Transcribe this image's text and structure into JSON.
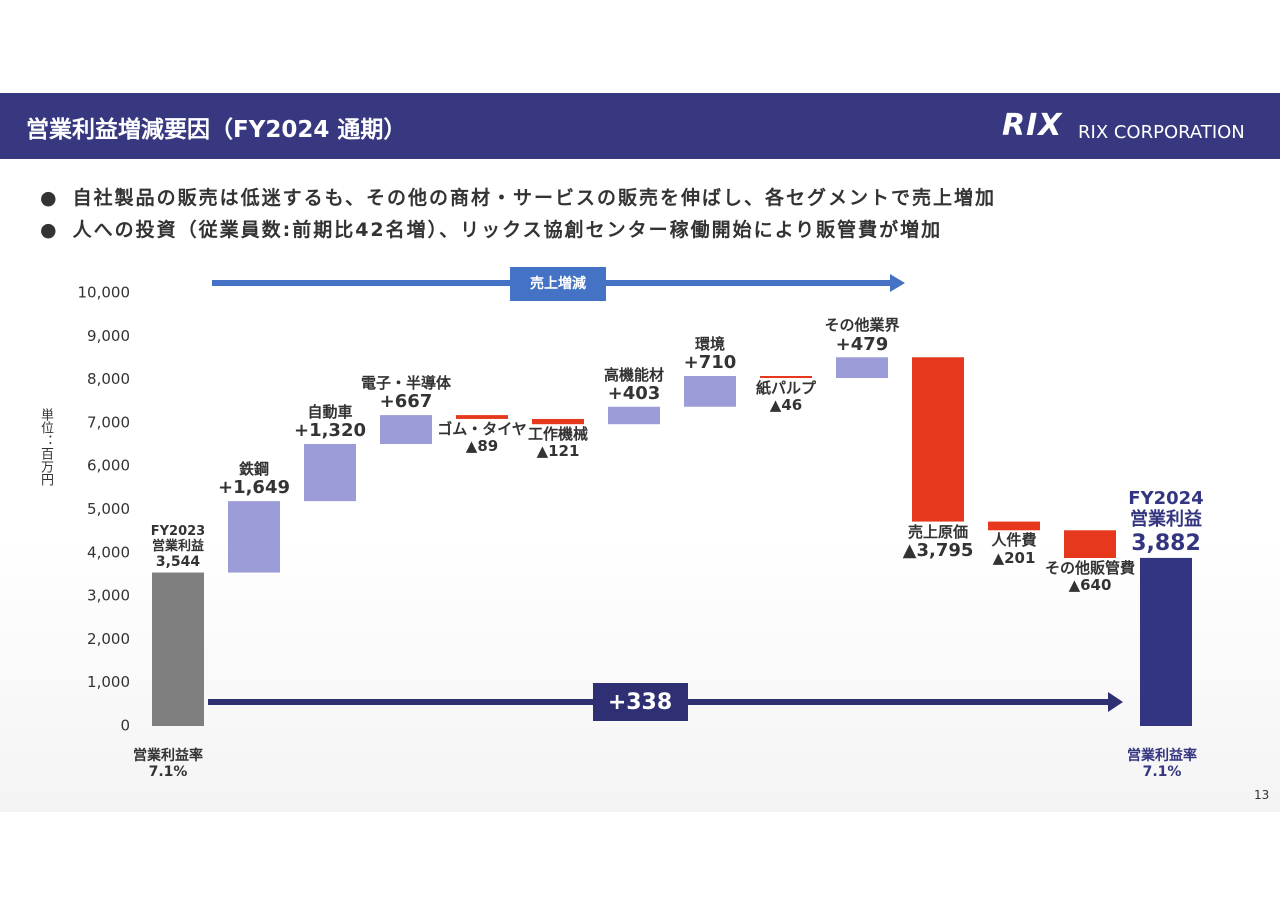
{
  "header": {
    "title": "営業利益増減要因（FY2024 通期）",
    "logo_mark": "RIX",
    "logo_text": "RIX CORPORATION"
  },
  "bullets": [
    "自社製品の販売は低迷するも、その他の商材・サービスの販売を伸ばし、各セグメントで売上増加",
    "人への投資（従業員数:前期比42名増）、リックス協創センター稼働開始により販管費が増加"
  ],
  "page_number": "13",
  "chart_data": {
    "type": "waterfall",
    "y_label": "単位：百万円",
    "categories": [
      "FY2023\n営業利益",
      "鉄鋼",
      "自動車",
      "電子・半導体",
      "ゴム・タイヤ",
      "工作機械",
      "高機能材",
      "環境",
      "紙パルプ",
      "その他業界",
      "売上原価",
      "人件費",
      "その他販管費",
      "FY2024\n営業利益"
    ],
    "values": [
      3544,
      1649,
      1320,
      667,
      -89,
      -121,
      403,
      710,
      -46,
      479,
      -3795,
      -201,
      -640,
      3882
    ],
    "value_labels": [
      "3,544",
      "+1,649",
      "+1,320",
      "+667",
      "▲89",
      "▲121",
      "+403",
      "+710",
      "▲46",
      "+479",
      "▲3,795",
      "▲201",
      "▲640",
      "3,882"
    ],
    "colors": [
      "#7f7f7f",
      "#9c9cd8",
      "#9c9cd8",
      "#9c9cd8",
      "#e5381d",
      "#e5381d",
      "#9c9cd8",
      "#9c9cd8",
      "#e5381d",
      "#9c9cd8",
      "#e5381d",
      "#e5381d",
      "#e5381d",
      "#343580"
    ],
    "ylim": [
      0,
      10000
    ],
    "yticks": [
      0,
      {
        "value": 1000,
        "label": "1,000"
      },
      {
        "value": 2000,
        "label": "2,000"
      },
      {
        "value": 3000,
        "label": "3,000"
      },
      {
        "value": 4000,
        "label": "4,000"
      },
      {
        "value": 5000,
        "label": "5,000"
      },
      {
        "value": 6000,
        "label": "6,000"
      },
      {
        "value": 7000,
        "label": "7,000"
      },
      {
        "value": 8000,
        "label": "8,000"
      },
      {
        "value": 9000,
        "label": "9,000"
      },
      {
        "value": 10000,
        "label": "10,000"
      }
    ],
    "sales_arrow_label": "売上増減",
    "change": {
      "value": 338,
      "label": "+338"
    },
    "margin_title": "営業利益率",
    "margin_start": {
      "value": 7.1,
      "label": "7.1%"
    },
    "margin_end": {
      "value": 7.1,
      "label": "7.1%"
    }
  }
}
